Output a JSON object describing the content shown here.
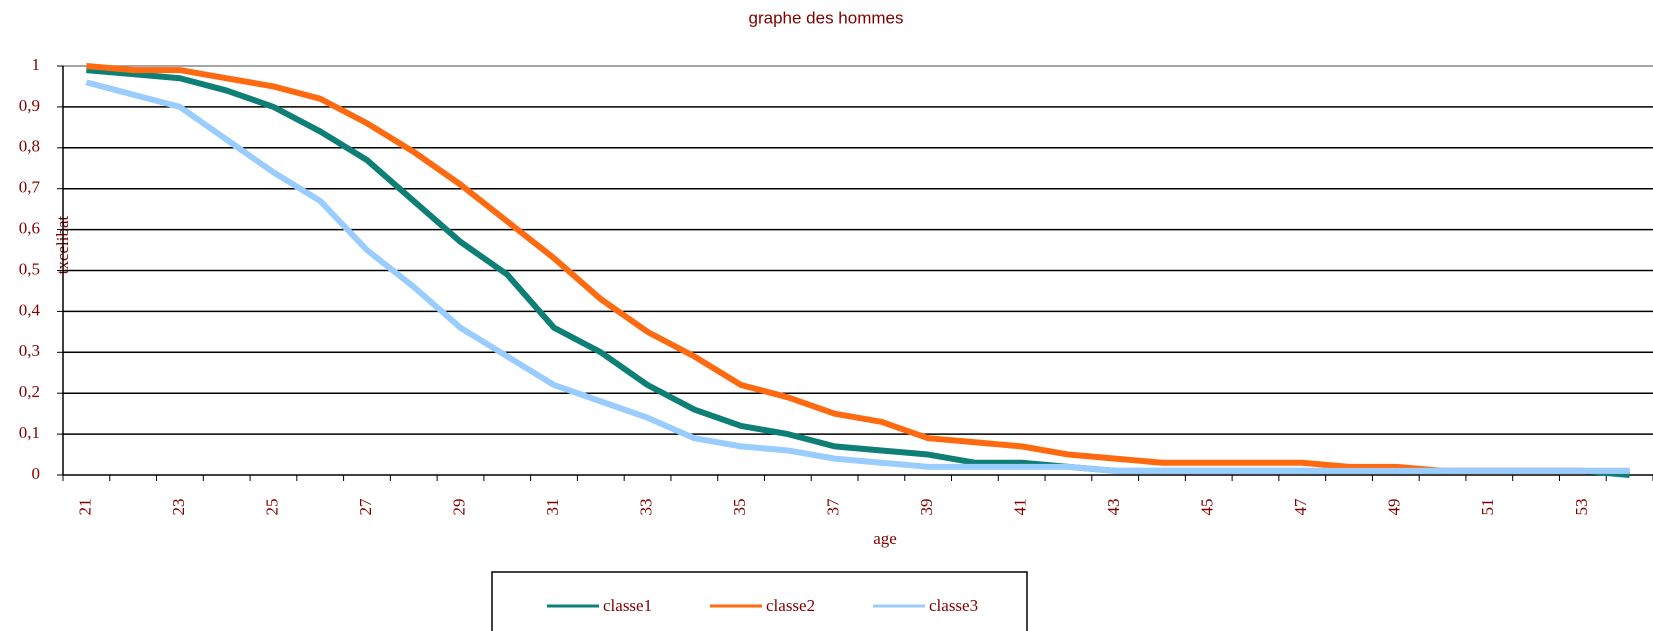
{
  "chart_data": {
    "type": "line",
    "title": "graphe des hommes",
    "y_label": "txcelibat",
    "x_label": "age",
    "categories": [
      21,
      null,
      23,
      null,
      25,
      null,
      27,
      null,
      29,
      null,
      31,
      null,
      33,
      null,
      35,
      null,
      37,
      null,
      39,
      null,
      41,
      null,
      43,
      null,
      45,
      null,
      47,
      null,
      49,
      null,
      51,
      null,
      53,
      null
    ],
    "series": [
      {
        "name": "classe1",
        "color": "#0e7f75",
        "values": [
          0.99,
          0.98,
          0.97,
          0.94,
          0.9,
          0.84,
          0.77,
          0.67,
          0.57,
          0.49,
          0.36,
          0.3,
          0.22,
          0.16,
          0.12,
          0.1,
          0.07,
          0.06,
          0.05,
          0.03,
          0.03,
          0.02,
          0.01,
          0.01,
          0.01,
          0.01,
          0.01,
          0.01,
          0.01,
          0.01,
          0.01,
          0.01,
          0.01,
          0
        ]
      },
      {
        "name": "classe2",
        "color": "#ff6a10",
        "values": [
          1,
          0.99,
          0.99,
          0.97,
          0.95,
          0.92,
          0.86,
          0.79,
          0.71,
          0.62,
          0.53,
          0.43,
          0.35,
          0.29,
          0.22,
          0.19,
          0.15,
          0.13,
          0.09,
          0.08,
          0.07,
          0.05,
          0.04,
          0.03,
          0.03,
          0.03,
          0.03,
          0.02,
          0.02,
          0.01,
          0.01,
          0.01,
          0.01,
          0.01
        ]
      },
      {
        "name": "classe3",
        "color": "#99ccff",
        "values": [
          0.96,
          0.93,
          0.9,
          0.82,
          0.74,
          0.67,
          0.55,
          0.46,
          0.36,
          0.29,
          0.22,
          0.18,
          0.14,
          0.09,
          0.07,
          0.06,
          0.04,
          0.03,
          0.02,
          0.02,
          0.02,
          0.02,
          0.01,
          0.01,
          0.01,
          0.01,
          0.01,
          0.01,
          0.01,
          0.01,
          0.01,
          0.01,
          0.01,
          0.01
        ]
      }
    ],
    "ylim": [
      0,
      1
    ],
    "yticks": [
      0,
      {
        "value": 0.1,
        "label": "0,1"
      },
      {
        "value": 0.2,
        "label": "0,2"
      },
      {
        "value": 0.3,
        "label": "0,3"
      },
      {
        "value": 0.4,
        "label": "0,4"
      },
      {
        "value": 0.5,
        "label": "0,5"
      },
      {
        "value": 0.6,
        "label": "0,6"
      },
      {
        "value": 0.7,
        "label": "0,7"
      },
      {
        "value": 0.8,
        "label": "0,8"
      },
      {
        "value": 0.9,
        "label": "0,9"
      },
      1
    ],
    "grid": true
  }
}
